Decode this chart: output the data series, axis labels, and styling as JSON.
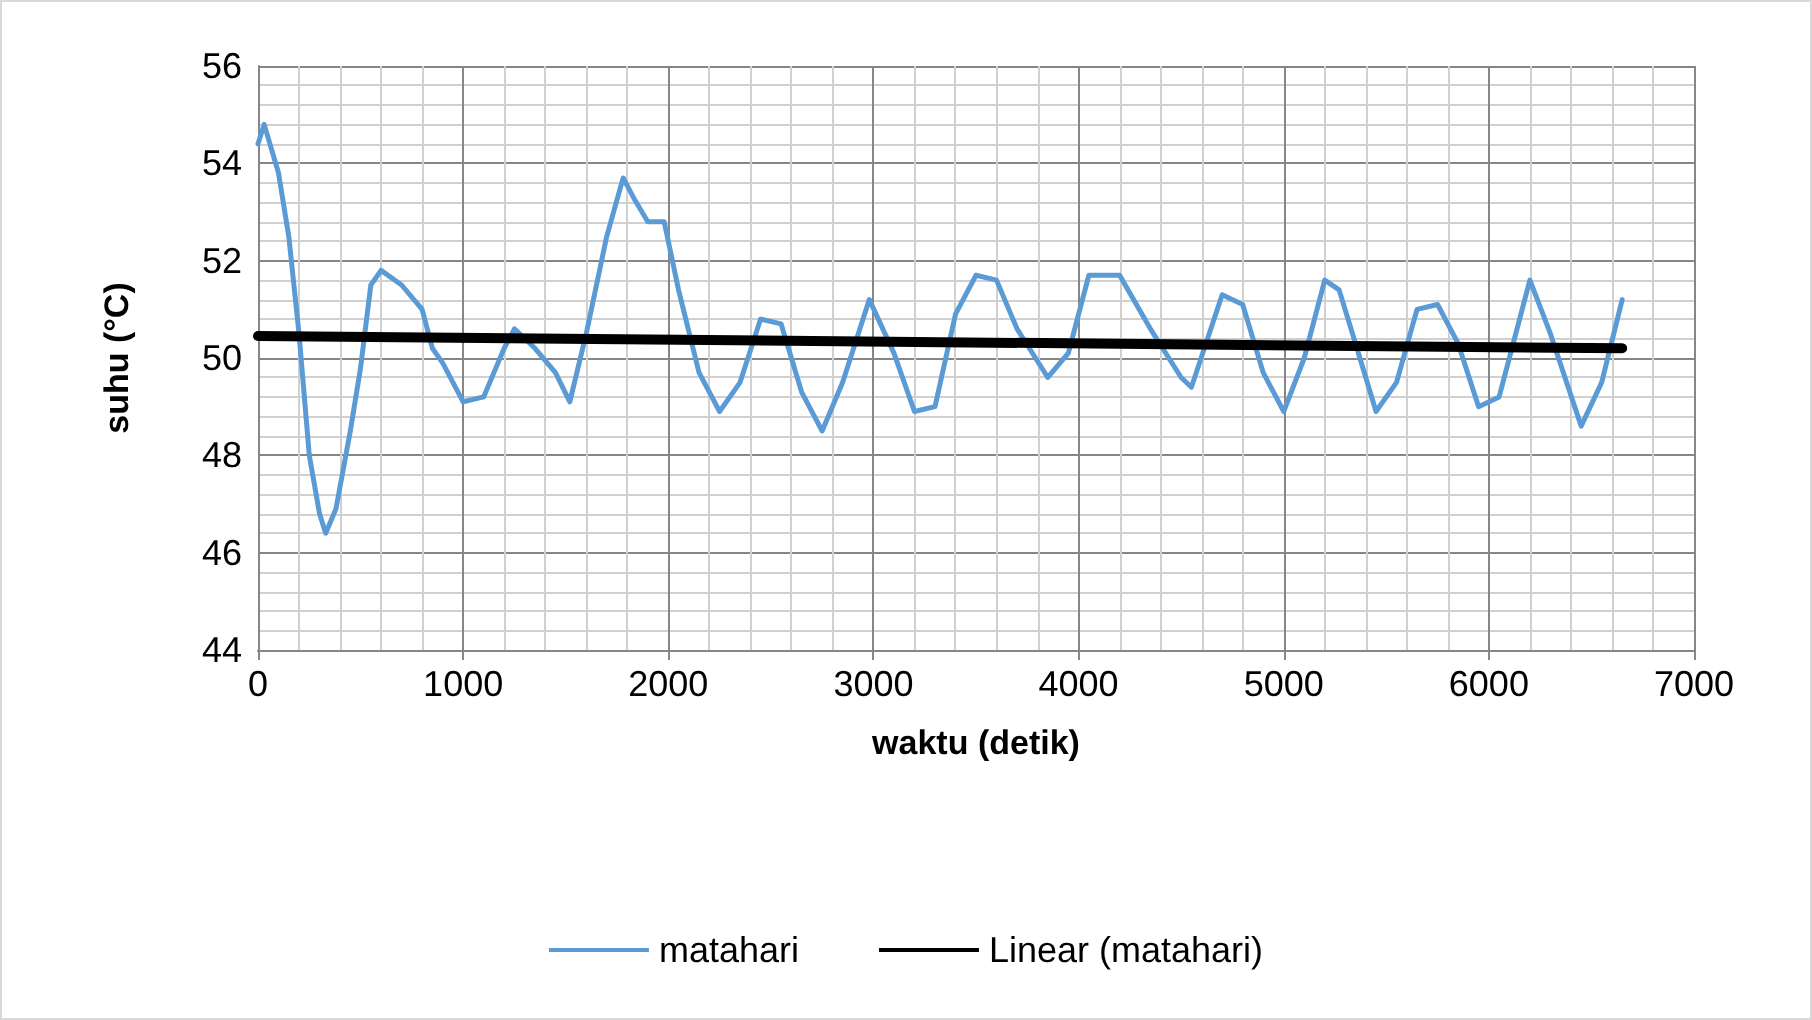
{
  "chart_data": {
    "type": "line",
    "xlabel": "waktu (detik)",
    "ylabel": "suhu (°C)",
    "xlim": [
      0,
      7000
    ],
    "xticks": [
      0,
      1000,
      2000,
      3000,
      4000,
      5000,
      6000,
      7000
    ],
    "ylim": [
      44,
      56
    ],
    "yticks": [
      44,
      46,
      48,
      50,
      52,
      54,
      56
    ],
    "grid": true,
    "legend": "bottom",
    "marker": "none",
    "line_style": "solid",
    "series": [
      {
        "name": "matahari",
        "color": "#5b9bd5",
        "x": [
          0,
          30,
          100,
          150,
          200,
          250,
          300,
          330,
          380,
          450,
          500,
          550,
          600,
          700,
          800,
          850,
          900,
          1000,
          1100,
          1150,
          1200,
          1250,
          1350,
          1450,
          1520,
          1600,
          1700,
          1780,
          1830,
          1900,
          1980,
          2050,
          2150,
          2250,
          2350,
          2450,
          2550,
          2650,
          2750,
          2850,
          2980,
          3100,
          3200,
          3300,
          3400,
          3500,
          3600,
          3700,
          3850,
          3950,
          4050,
          4200,
          4350,
          4500,
          4550,
          4700,
          4800,
          4900,
          5000,
          5100,
          5200,
          5270,
          5350,
          5450,
          5550,
          5650,
          5750,
          5850,
          5950,
          6050,
          6200,
          6300,
          6450,
          6550,
          6650
        ],
        "values": [
          54.4,
          54.8,
          53.8,
          52.5,
          50.5,
          48,
          46.8,
          46.4,
          46.9,
          48.5,
          49.8,
          51.5,
          51.8,
          51.5,
          51,
          50.2,
          49.9,
          49.1,
          49.2,
          49.7,
          50.2,
          50.6,
          50.2,
          49.7,
          49.1,
          50.5,
          52.5,
          53.7,
          53.3,
          52.8,
          52.8,
          51.4,
          49.7,
          48.9,
          49.5,
          50.8,
          50.7,
          49.3,
          48.5,
          49.5,
          51.2,
          50.1,
          48.9,
          49,
          50.9,
          51.7,
          51.6,
          50.6,
          49.6,
          50.1,
          51.7,
          51.7,
          50.6,
          49.6,
          49.4,
          51.3,
          51.1,
          49.7,
          48.9,
          50,
          51.6,
          51.4,
          50.3,
          48.9,
          49.5,
          51,
          51.1,
          50.3,
          49,
          49.2,
          51.6,
          50.5,
          48.6,
          49.5,
          51.2
        ]
      },
      {
        "name": "Linear (matahari)",
        "color": "#000000",
        "x": [
          0,
          6650
        ],
        "values": [
          50.45,
          50.2
        ]
      }
    ]
  }
}
